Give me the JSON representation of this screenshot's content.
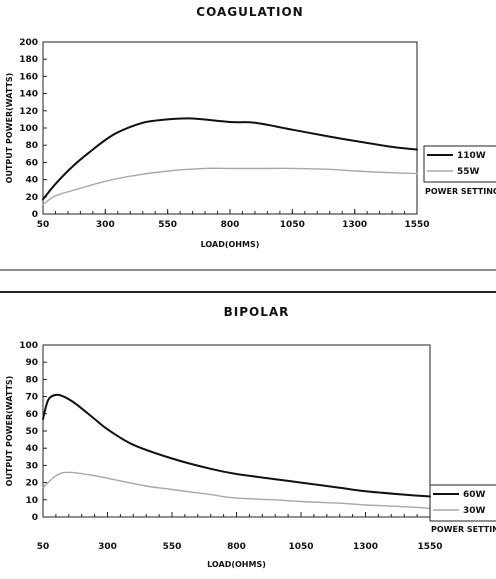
{
  "chart_data": [
    {
      "type": "line",
      "title": "COAGULATION",
      "xlabel": "LOAD(OHMS)",
      "ylabel": "OUTPUT POWER(WATTS)",
      "xlim": [
        50,
        1550
      ],
      "ylim": [
        0,
        200
      ],
      "xticks": [
        50,
        300,
        550,
        800,
        1050,
        1300,
        1550
      ],
      "yticks": [
        0,
        20,
        40,
        60,
        80,
        100,
        120,
        140,
        160,
        180,
        200
      ],
      "legend_title": "POWER SETTING",
      "legend_position": "right",
      "grid": false,
      "series": [
        {
          "name": "110W",
          "color": "#111111",
          "x": [
            50,
            100,
            175,
            250,
            300,
            350,
            450,
            550,
            650,
            800,
            900,
            1050,
            1200,
            1300,
            1450,
            1550
          ],
          "y": [
            17,
            35,
            57,
            75,
            86,
            95,
            106,
            110,
            111,
            107,
            106,
            98,
            90,
            85,
            78,
            75
          ]
        },
        {
          "name": "55W",
          "color": "#a8a8a8",
          "x": [
            50,
            100,
            200,
            300,
            400,
            550,
            700,
            800,
            950,
            1050,
            1200,
            1300,
            1450,
            1550
          ],
          "y": [
            11,
            21,
            30,
            38,
            44,
            50,
            53,
            53,
            53,
            53,
            52,
            50,
            48,
            47
          ]
        }
      ]
    },
    {
      "type": "line",
      "title": "BIPOLAR",
      "xlabel": "LOAD(OHMS)",
      "ylabel": "OUTPUT POWER(WATTS)",
      "xlim": [
        50,
        1550
      ],
      "ylim": [
        0,
        100
      ],
      "xticks": [
        50,
        300,
        550,
        800,
        1050,
        1300,
        1550
      ],
      "yticks": [
        0,
        10,
        20,
        30,
        40,
        50,
        60,
        70,
        80,
        90,
        100
      ],
      "legend_title": "POWER SETTING",
      "legend_position": "right",
      "grid": false,
      "series": [
        {
          "name": "60W",
          "color": "#111111",
          "x": [
            50,
            70,
            100,
            130,
            175,
            250,
            300,
            400,
            550,
            700,
            800,
            950,
            1050,
            1200,
            1300,
            1450,
            1550
          ],
          "y": [
            57,
            68,
            71,
            70,
            66,
            57,
            51,
            42,
            34,
            28,
            25,
            22,
            20,
            17,
            15,
            13,
            12
          ]
        },
        {
          "name": "30W",
          "color": "#a8a8a8",
          "x": [
            50,
            100,
            150,
            250,
            350,
            450,
            550,
            700,
            800,
            950,
            1050,
            1200,
            1300,
            1450,
            1550
          ],
          "y": [
            17,
            24,
            26,
            24,
            21,
            18,
            16,
            13,
            11,
            10,
            9,
            8,
            7,
            6,
            5
          ]
        }
      ]
    }
  ]
}
